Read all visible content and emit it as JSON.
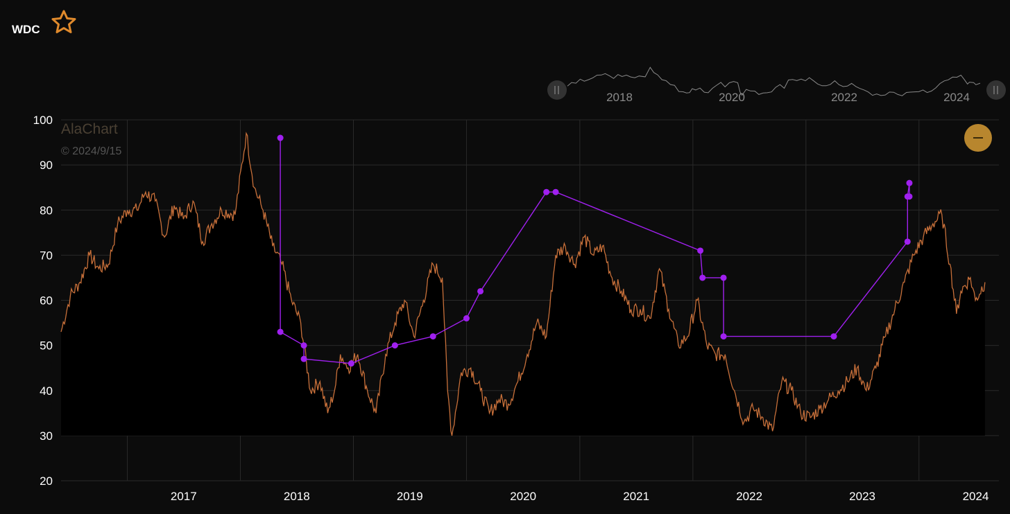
{
  "header": {
    "ticker": "WDC",
    "favorite_icon": "star-outline-icon"
  },
  "watermark": {
    "brand": "AlaChart",
    "date": "© 2024/9/15"
  },
  "navigator": {
    "labels": [
      "2018",
      "2020",
      "2022",
      "2024"
    ]
  },
  "controls": {
    "collapse_icon": "minus-icon"
  },
  "colors": {
    "price": "#c8703a",
    "signals": "#a020f0",
    "accent": "#b8862e",
    "background": "#0c0c0c"
  },
  "chart_data": {
    "type": "line",
    "x_tick_labels": [
      "2017",
      "2018",
      "2019",
      "2020",
      "2021",
      "2022",
      "2023",
      "2024"
    ],
    "y_ticks": [
      20,
      30,
      40,
      50,
      60,
      70,
      80,
      90,
      100
    ],
    "ylim": [
      20,
      100
    ],
    "xlim": [
      "2016-06-01",
      "2024-09-15"
    ],
    "grid": true,
    "series": [
      {
        "kind": "price",
        "points": [
          [
            "2016-06-01",
            53
          ],
          [
            "2016-07-01",
            61
          ],
          [
            "2016-08-01",
            64
          ],
          [
            "2016-09-01",
            70
          ],
          [
            "2016-10-01",
            67
          ],
          [
            "2016-11-01",
            68
          ],
          [
            "2016-12-01",
            77
          ],
          [
            "2017-01-01",
            80
          ],
          [
            "2017-02-01",
            80
          ],
          [
            "2017-03-01",
            84
          ],
          [
            "2017-04-01",
            82
          ],
          [
            "2017-05-01",
            74
          ],
          [
            "2017-06-01",
            81
          ],
          [
            "2017-07-01",
            78
          ],
          [
            "2017-08-01",
            82
          ],
          [
            "2017-09-01",
            73
          ],
          [
            "2017-10-01",
            77
          ],
          [
            "2017-11-01",
            80
          ],
          [
            "2017-12-15",
            79
          ],
          [
            "2018-01-20",
            97
          ],
          [
            "2018-02-15",
            85
          ],
          [
            "2018-03-15",
            80
          ],
          [
            "2018-04-15",
            72
          ],
          [
            "2018-05-15",
            68
          ],
          [
            "2018-06-15",
            60
          ],
          [
            "2018-07-15",
            55
          ],
          [
            "2018-08-15",
            40
          ],
          [
            "2018-09-15",
            42
          ],
          [
            "2018-10-10",
            35
          ],
          [
            "2018-11-01",
            40
          ],
          [
            "2018-11-20",
            48
          ],
          [
            "2018-12-15",
            45
          ],
          [
            "2019-01-15",
            48
          ],
          [
            "2019-02-15",
            40
          ],
          [
            "2019-03-15",
            35
          ],
          [
            "2019-04-15",
            48
          ],
          [
            "2019-05-15",
            55
          ],
          [
            "2019-06-15",
            60
          ],
          [
            "2019-07-15",
            52
          ],
          [
            "2019-08-15",
            60
          ],
          [
            "2019-09-15",
            68
          ],
          [
            "2019-10-15",
            65
          ],
          [
            "2019-11-01",
            40
          ],
          [
            "2019-11-15",
            30
          ],
          [
            "2019-12-15",
            44
          ],
          [
            "2020-01-15",
            45
          ],
          [
            "2020-02-15",
            40
          ],
          [
            "2020-03-15",
            35
          ],
          [
            "2020-04-15",
            38
          ],
          [
            "2020-05-15",
            37
          ],
          [
            "2020-06-15",
            42
          ],
          [
            "2020-07-15",
            48
          ],
          [
            "2020-08-15",
            55
          ],
          [
            "2020-09-15",
            52
          ],
          [
            "2020-10-15",
            70
          ],
          [
            "2020-11-15",
            72
          ],
          [
            "2020-12-15",
            68
          ],
          [
            "2021-01-15",
            74
          ],
          [
            "2021-02-15",
            70
          ],
          [
            "2021-03-15",
            72
          ],
          [
            "2021-04-15",
            65
          ],
          [
            "2021-05-15",
            62
          ],
          [
            "2021-06-15",
            58
          ],
          [
            "2021-07-15",
            58
          ],
          [
            "2021-08-15",
            56
          ],
          [
            "2021-09-15",
            67
          ],
          [
            "2021-10-15",
            58
          ],
          [
            "2021-11-15",
            50
          ],
          [
            "2021-12-15",
            52
          ],
          [
            "2022-01-15",
            60
          ],
          [
            "2022-02-15",
            50
          ],
          [
            "2022-03-15",
            48
          ],
          [
            "2022-04-15",
            48
          ],
          [
            "2022-05-15",
            40
          ],
          [
            "2022-06-15",
            33
          ],
          [
            "2022-07-15",
            36
          ],
          [
            "2022-08-15",
            34
          ],
          [
            "2022-09-15",
            31
          ],
          [
            "2022-10-15",
            42
          ],
          [
            "2022-11-15",
            40
          ],
          [
            "2022-12-15",
            35
          ],
          [
            "2023-01-15",
            34
          ],
          [
            "2023-02-15",
            36
          ],
          [
            "2023-03-15",
            38
          ],
          [
            "2023-04-15",
            40
          ],
          [
            "2023-05-15",
            42
          ],
          [
            "2023-06-15",
            45
          ],
          [
            "2023-07-15",
            40
          ],
          [
            "2023-08-15",
            45
          ],
          [
            "2023-09-15",
            52
          ],
          [
            "2023-10-15",
            58
          ],
          [
            "2023-11-15",
            64
          ],
          [
            "2023-12-15",
            70
          ],
          [
            "2024-01-15",
            74
          ],
          [
            "2024-02-15",
            77
          ],
          [
            "2024-03-15",
            79
          ],
          [
            "2024-04-10",
            68
          ],
          [
            "2024-05-01",
            57
          ],
          [
            "2024-05-15",
            62
          ],
          [
            "2024-06-15",
            65
          ],
          [
            "2024-07-01",
            60
          ],
          [
            "2024-08-01",
            64
          ]
        ]
      },
      {
        "kind": "signal",
        "points": [
          [
            "2018-05-10",
            96
          ],
          [
            "2018-05-10",
            53
          ],
          [
            "2018-07-25",
            50
          ],
          [
            "2018-07-25",
            47
          ],
          [
            "2018-12-25",
            46
          ],
          [
            "2019-05-15",
            50
          ],
          [
            "2019-09-15",
            52
          ],
          [
            "2020-01-01",
            56
          ],
          [
            "2020-02-15",
            62
          ],
          [
            "2020-09-15",
            84
          ],
          [
            "2020-10-15",
            84
          ],
          [
            "2022-01-25",
            71
          ],
          [
            "2022-02-01",
            65
          ],
          [
            "2022-04-10",
            65
          ],
          [
            "2022-04-10",
            52
          ],
          [
            "2023-04-01",
            52
          ],
          [
            "2023-11-25",
            73
          ],
          [
            "2023-11-25",
            83
          ],
          [
            "2023-12-01",
            86
          ],
          [
            "2023-12-01",
            83
          ]
        ]
      }
    ]
  }
}
